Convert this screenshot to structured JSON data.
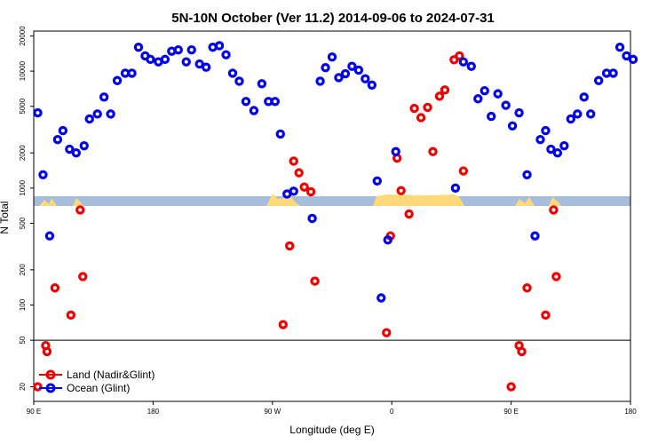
{
  "chart_data": {
    "type": "scatter",
    "title": "5N-10N October (Ver 11.2)   2014-09-06 to 2024-07-31",
    "xlabel": "Longitude (deg E)",
    "ylabel": "N Total",
    "x_ticks": [
      {
        "value": 90,
        "label": "90 E"
      },
      {
        "value": 180,
        "label": "180"
      },
      {
        "value": 270,
        "label": "90 W"
      },
      {
        "value": 360,
        "label": "0"
      },
      {
        "value": 450,
        "label": "90 E"
      },
      {
        "value": 540,
        "label": "180"
      }
    ],
    "xlim": [
      90,
      540
    ],
    "y_scale": "log",
    "ylim": [
      15,
      22000
    ],
    "y_ticks": [
      20,
      50,
      100,
      200,
      500,
      1000,
      2000,
      5000,
      10000,
      20000
    ],
    "reference_line": 50,
    "band_value": 780,
    "band_color": "#a6bddb",
    "land_color": "#ffd97a",
    "legend_position": "bottom-left",
    "series": [
      {
        "name": "Land (Nadir&Glint)",
        "color": "#ee0000",
        "points": [
          [
            93,
            20
          ],
          [
            99,
            45
          ],
          [
            100,
            40
          ],
          [
            106,
            140
          ],
          [
            118,
            82
          ],
          [
            125,
            650
          ],
          [
            127,
            175
          ],
          [
            278,
            68
          ],
          [
            283,
            320
          ],
          [
            286,
            1700
          ],
          [
            290,
            1350
          ],
          [
            294,
            1020
          ],
          [
            299,
            930
          ],
          [
            302,
            160
          ],
          [
            356,
            58
          ],
          [
            359,
            390
          ],
          [
            364,
            1800
          ],
          [
            367,
            950
          ],
          [
            373,
            600
          ],
          [
            377,
            4800
          ],
          [
            382,
            4000
          ],
          [
            387,
            4900
          ],
          [
            391,
            2050
          ],
          [
            396,
            6100
          ],
          [
            400,
            6900
          ],
          [
            407,
            12500
          ],
          [
            411,
            13500
          ],
          [
            414,
            1400
          ],
          [
            450,
            20
          ],
          [
            456,
            45
          ],
          [
            458,
            40
          ],
          [
            462,
            140
          ],
          [
            476,
            82
          ],
          [
            482,
            650
          ],
          [
            484,
            175
          ]
        ]
      },
      {
        "name": "Ocean (Glint)",
        "color": "#0000ee",
        "points": [
          [
            93,
            4400
          ],
          [
            97,
            1300
          ],
          [
            102,
            390
          ],
          [
            108,
            2600
          ],
          [
            112,
            3100
          ],
          [
            117,
            2150
          ],
          [
            122,
            2000
          ],
          [
            128,
            2300
          ],
          [
            132,
            3900
          ],
          [
            138,
            4300
          ],
          [
            143,
            6000
          ],
          [
            148,
            4300
          ],
          [
            153,
            8300
          ],
          [
            159,
            9600
          ],
          [
            164,
            9600
          ],
          [
            169,
            16000
          ],
          [
            174,
            13500
          ],
          [
            178,
            12600
          ],
          [
            184,
            12000
          ],
          [
            189,
            12600
          ],
          [
            194,
            14800
          ],
          [
            199,
            15200
          ],
          [
            205,
            12000
          ],
          [
            209,
            15200
          ],
          [
            215,
            11500
          ],
          [
            220,
            10800
          ],
          [
            225,
            16000
          ],
          [
            230,
            16500
          ],
          [
            235,
            13800
          ],
          [
            240,
            9600
          ],
          [
            245,
            8200
          ],
          [
            250,
            5500
          ],
          [
            256,
            4600
          ],
          [
            262,
            7800
          ],
          [
            267,
            5500
          ],
          [
            272,
            5500
          ],
          [
            276,
            2900
          ],
          [
            281,
            890
          ],
          [
            286,
            940
          ],
          [
            300,
            550
          ],
          [
            306,
            8200
          ],
          [
            310,
            10700
          ],
          [
            315,
            13200
          ],
          [
            320,
            8800
          ],
          [
            325,
            9500
          ],
          [
            330,
            11000
          ],
          [
            335,
            10200
          ],
          [
            340,
            8600
          ],
          [
            345,
            7600
          ],
          [
            349,
            1150
          ],
          [
            352,
            115
          ],
          [
            357,
            360
          ],
          [
            363,
            2050
          ],
          [
            408,
            1000
          ],
          [
            414,
            12000
          ],
          [
            420,
            11000
          ],
          [
            425,
            5800
          ],
          [
            430,
            6800
          ],
          [
            435,
            4100
          ],
          [
            440,
            6400
          ],
          [
            446,
            5100
          ],
          [
            451,
            3400
          ],
          [
            456,
            4400
          ],
          [
            462,
            1300
          ],
          [
            468,
            390
          ],
          [
            472,
            2600
          ],
          [
            476,
            3100
          ],
          [
            480,
            2150
          ],
          [
            485,
            2000
          ],
          [
            490,
            2300
          ],
          [
            495,
            3900
          ],
          [
            500,
            4300
          ],
          [
            505,
            6000
          ],
          [
            510,
            4300
          ],
          [
            516,
            8300
          ],
          [
            522,
            9600
          ],
          [
            527,
            9600
          ],
          [
            532,
            16000
          ],
          [
            537,
            13500
          ],
          [
            542,
            12600
          ]
        ]
      }
    ]
  }
}
